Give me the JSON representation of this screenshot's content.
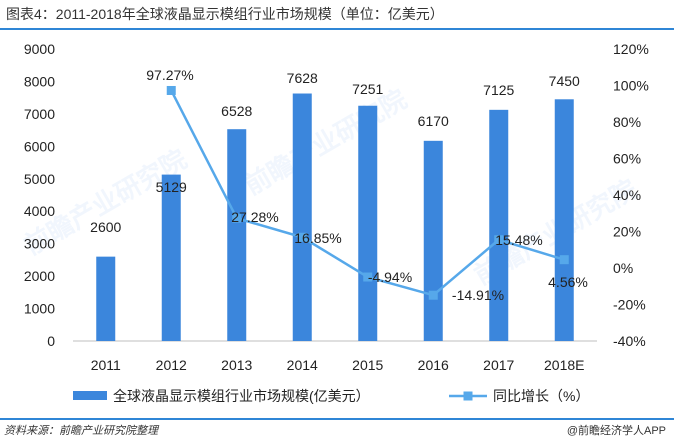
{
  "title": "图表4：2011-2018年全球液晶显示模组行业市场规模（单位：亿美元）",
  "source": "资料来源：前瞻产业研究院整理",
  "brand": "@前瞻经济学人APP",
  "watermark": "前瞻产业研究院",
  "colors": {
    "bar": "#3b86dc",
    "line": "#56a8ea",
    "rule": "#2f86d6"
  },
  "chart_data": {
    "type": "bar",
    "categories": [
      "2011",
      "2012",
      "2013",
      "2014",
      "2015",
      "2016",
      "2017",
      "2018E"
    ],
    "series": [
      {
        "name": "全球液晶显示模组行业市场规模(亿美元）",
        "type": "bar",
        "axis": "left",
        "values": [
          2600,
          5129,
          6528,
          7628,
          7251,
          6170,
          7125,
          7450
        ],
        "labels": [
          "2600",
          "5129",
          "6528",
          "7628",
          "7251",
          "6170",
          "7125",
          "7450"
        ]
      },
      {
        "name": "同比增长（%）",
        "type": "line",
        "axis": "right",
        "values": [
          null,
          97.27,
          27.28,
          16.85,
          -4.94,
          -14.91,
          15.48,
          4.56
        ],
        "labels": [
          "",
          "97.27%",
          "27.28%",
          "16.85%",
          "-4.94%",
          "-14.91%",
          "15.48%",
          "4.56%"
        ]
      }
    ],
    "y_left": {
      "min": 0,
      "max": 9000,
      "ticks": [
        "0",
        "1000",
        "2000",
        "3000",
        "4000",
        "5000",
        "6000",
        "7000",
        "8000",
        "9000"
      ]
    },
    "y_right": {
      "min": -40,
      "max": 120,
      "ticks": [
        "-40%",
        "-20%",
        "0%",
        "20%",
        "40%",
        "60%",
        "80%",
        "100%",
        "120%"
      ]
    },
    "grid": false,
    "legend": "bottom"
  }
}
